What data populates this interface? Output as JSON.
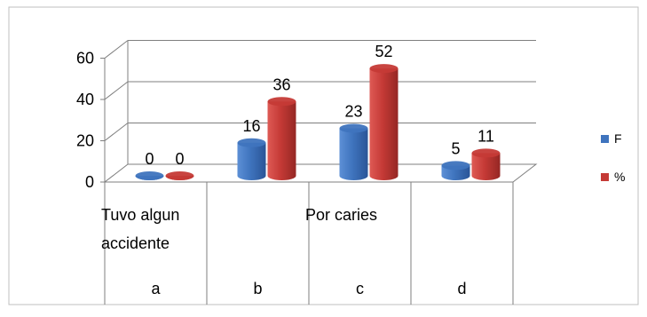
{
  "chart_data": {
    "type": "bar",
    "subtype": "3d-clustered-cylinder",
    "categories": [
      "a",
      "b",
      "c",
      "d"
    ],
    "category_text_row": [
      "Tuvo algun accidente",
      "",
      "Por caries",
      ""
    ],
    "series": [
      {
        "name": "F",
        "values": [
          0,
          16,
          23,
          5
        ],
        "color": "#3f74be"
      },
      {
        "name": "%",
        "values": [
          0,
          36,
          52,
          11
        ],
        "color": "#c53a36"
      }
    ],
    "ylim": [
      0,
      60
    ],
    "yticks": [
      "0",
      "20",
      "40",
      "60"
    ],
    "grid": true,
    "legend_position": "right",
    "data_labels": true,
    "title": "",
    "xlabel": "",
    "ylabel": ""
  }
}
